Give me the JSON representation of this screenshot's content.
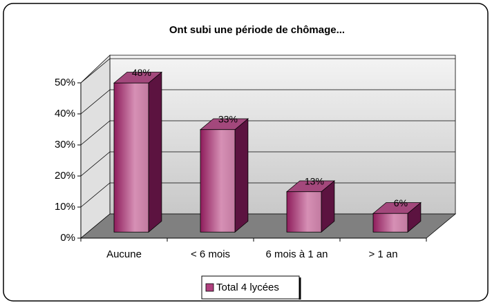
{
  "chart_data": {
    "type": "bar3d",
    "title": "Ont subi une période de chômage...",
    "categories": [
      "Aucune",
      "< 6 mois",
      "6 mois à 1 an",
      "> 1 an"
    ],
    "series": [
      {
        "name": "Total 4 lycées",
        "color": "#b0407f",
        "values": [
          48,
          33,
          13,
          6
        ],
        "value_labels": [
          "48%",
          "33%",
          "13%",
          "6%"
        ]
      }
    ],
    "ylim": [
      0,
      50
    ],
    "yticks": [
      {
        "value": 0,
        "label": "0%"
      },
      {
        "value": 10,
        "label": "10%"
      },
      {
        "value": 20,
        "label": "20%"
      },
      {
        "value": 30,
        "label": "30%"
      },
      {
        "value": 40,
        "label": "40%"
      },
      {
        "value": 50,
        "label": "50%"
      }
    ],
    "grid": true,
    "legend": "bottom"
  }
}
